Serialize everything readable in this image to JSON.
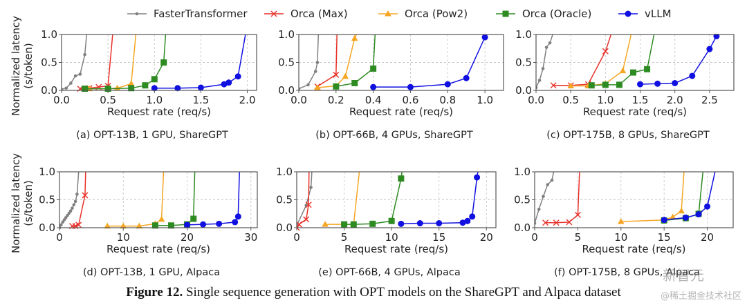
{
  "legend": [
    {
      "name": "FasterTransformer",
      "color": "#808080",
      "marker": "dot"
    },
    {
      "name": "Orca (Max)",
      "color": "#e8312a",
      "marker": "x"
    },
    {
      "name": "Orca (Pow2)",
      "color": "#f5a623",
      "marker": "triangle"
    },
    {
      "name": "Orca (Oracle)",
      "color": "#2e8b22",
      "marker": "square"
    },
    {
      "name": "vLLM",
      "color": "#1010e0",
      "marker": "circle"
    }
  ],
  "caption": {
    "label": "Figure 12.",
    "text": " Single sequence generation with OPT models on the ShareGPT and Alpaca dataset"
  },
  "watermarks": [
    "新智元",
    "@稀土掘金技术社区"
  ],
  "chart_data": [
    {
      "type": "line",
      "subtitle": "(a) OPT-13B, 1 GPU, ShareGPT",
      "xlabel": "Request rate (req/s)",
      "ylabel": "Normalized latency\n(s/token)",
      "xlim": [
        0,
        2.1
      ],
      "ylim": [
        0,
        1.0
      ],
      "xticks": [
        0.0,
        0.5,
        1.0,
        1.5,
        2.0
      ],
      "xtick_labels": [
        "0.0",
        "0.5",
        "1.0",
        "1.5",
        "2.0"
      ],
      "yticks": [
        0.0,
        0.5,
        1.0
      ],
      "ytick_labels": [
        "0.0",
        "0.5",
        "1.0"
      ],
      "grid": true,
      "series": [
        {
          "name": "FasterTransformer",
          "x": [
            0.0,
            0.05,
            0.1,
            0.15,
            0.2,
            0.25,
            0.27
          ],
          "y": [
            0.02,
            0.04,
            0.13,
            0.26,
            0.29,
            0.64,
            1.0
          ]
        },
        {
          "name": "Orca (Max)",
          "x": [
            0.2,
            0.25,
            0.3,
            0.4,
            0.5,
            0.55
          ],
          "y": [
            0.03,
            0.03,
            0.04,
            0.06,
            0.08,
            1.0
          ]
        },
        {
          "name": "Orca (Pow2)",
          "x": [
            0.25,
            0.3,
            0.5,
            0.6,
            0.75,
            0.8
          ],
          "y": [
            0.03,
            0.03,
            0.03,
            0.04,
            0.12,
            1.0
          ]
        },
        {
          "name": "Orca (Oracle)",
          "x": [
            0.25,
            0.5,
            0.75,
            0.9,
            1.0,
            1.1,
            1.12
          ],
          "y": [
            0.03,
            0.03,
            0.04,
            0.09,
            0.2,
            0.5,
            1.0
          ]
        },
        {
          "name": "vLLM",
          "x": [
            1.0,
            1.25,
            1.5,
            1.75,
            1.8,
            1.9,
            1.98
          ],
          "y": [
            0.04,
            0.04,
            0.05,
            0.11,
            0.14,
            0.25,
            1.0
          ]
        }
      ]
    },
    {
      "type": "line",
      "subtitle": "(b) OPT-66B, 4 GPUs, ShareGPT",
      "xlabel": "Request rate (req/s)",
      "ylabel": "",
      "xlim": [
        0,
        1.1
      ],
      "ylim": [
        0,
        1.0
      ],
      "xticks": [
        0.0,
        0.2,
        0.4,
        0.6,
        0.8,
        1.0
      ],
      "xtick_labels": [
        "0.0",
        "0.2",
        "0.4",
        "0.6",
        "0.8",
        "1.0"
      ],
      "yticks": [
        0.0,
        0.5,
        1.0
      ],
      "ytick_labels": [
        "0.0",
        "0.5",
        "1.0"
      ],
      "grid": true,
      "series": [
        {
          "name": "FasterTransformer",
          "x": [
            0.0,
            0.05,
            0.09,
            0.1,
            0.105
          ],
          "y": [
            0.03,
            0.1,
            0.34,
            0.5,
            1.0
          ]
        },
        {
          "name": "Orca (Max)",
          "x": [
            0.1,
            0.2,
            0.205
          ],
          "y": [
            0.07,
            0.28,
            1.0
          ]
        },
        {
          "name": "Orca (Pow2)",
          "x": [
            0.1,
            0.2,
            0.25,
            0.3,
            0.31
          ],
          "y": [
            0.05,
            0.08,
            0.25,
            0.93,
            1.0
          ]
        },
        {
          "name": "Orca (Oracle)",
          "x": [
            0.2,
            0.3,
            0.4,
            0.41
          ],
          "y": [
            0.07,
            0.13,
            0.39,
            1.0
          ]
        },
        {
          "name": "vLLM",
          "x": [
            0.4,
            0.6,
            0.8,
            0.9,
            1.0
          ],
          "y": [
            0.06,
            0.06,
            0.11,
            0.22,
            0.95
          ]
        }
      ]
    },
    {
      "type": "line",
      "subtitle": "(c) OPT-175B, 8 GPUs, ShareGPT",
      "xlabel": "Request rate (req/s)",
      "ylabel": "",
      "xlim": [
        0,
        2.85
      ],
      "ylim": [
        0,
        1.0
      ],
      "xticks": [
        0.0,
        0.5,
        1.0,
        1.5,
        2.0,
        2.5
      ],
      "xtick_labels": [
        "0.0",
        "0.5",
        "1.0",
        "1.5",
        "2.0",
        "2.5"
      ],
      "yticks": [
        0.0,
        0.5,
        1.0
      ],
      "ytick_labels": [
        "0.0",
        "0.5",
        "1.0"
      ],
      "grid": true,
      "series": [
        {
          "name": "FasterTransformer",
          "x": [
            0.0,
            0.05,
            0.1,
            0.15,
            0.2,
            0.24
          ],
          "y": [
            0.05,
            0.18,
            0.39,
            0.77,
            0.85,
            1.0
          ]
        },
        {
          "name": "Orca (Max)",
          "x": [
            0.25,
            0.5,
            0.75,
            1.0,
            1.08
          ],
          "y": [
            0.09,
            0.09,
            0.11,
            0.7,
            1.0
          ]
        },
        {
          "name": "Orca (Pow2)",
          "x": [
            0.5,
            0.75,
            1.0,
            1.25,
            1.37
          ],
          "y": [
            0.08,
            0.08,
            0.12,
            0.35,
            1.0
          ]
        },
        {
          "name": "Orca (Oracle)",
          "x": [
            0.8,
            1.0,
            1.2,
            1.4,
            1.6,
            1.7
          ],
          "y": [
            0.09,
            0.1,
            0.1,
            0.32,
            0.38,
            1.0
          ]
        },
        {
          "name": "vLLM",
          "x": [
            1.5,
            1.75,
            2.0,
            2.25,
            2.5,
            2.6
          ],
          "y": [
            0.11,
            0.12,
            0.13,
            0.26,
            0.74,
            0.97
          ]
        }
      ]
    },
    {
      "type": "line",
      "subtitle": "(d) OPT-13B, 1 GPU, Alpaca",
      "xlabel": "Request rate (req/s)",
      "ylabel": "Normalized latency\n(s/token)",
      "xlim": [
        0,
        31
      ],
      "ylim": [
        0,
        1.0
      ],
      "xticks": [
        0,
        10,
        20,
        30
      ],
      "xtick_labels": [
        "0",
        "10",
        "20",
        "30"
      ],
      "yticks": [
        0.0,
        0.5,
        1.0
      ],
      "ytick_labels": [
        "0.0",
        "0.5",
        "1.0"
      ],
      "grid": true,
      "series": [
        {
          "name": "FasterTransformer",
          "x": [
            0.0,
            0.25,
            0.5,
            0.75,
            1.0,
            1.25,
            1.5,
            1.75,
            2.0,
            2.25,
            2.5,
            2.75,
            3.0
          ],
          "y": [
            0.0,
            0.05,
            0.1,
            0.14,
            0.18,
            0.22,
            0.26,
            0.3,
            0.35,
            0.41,
            0.47,
            0.6,
            1.0
          ]
        },
        {
          "name": "Orca (Max)",
          "x": [
            2.0,
            2.5,
            3.0,
            4.0,
            4.1
          ],
          "y": [
            0.03,
            0.03,
            0.05,
            0.58,
            1.0
          ]
        },
        {
          "name": "Orca (Pow2)",
          "x": [
            7.5,
            10,
            12.5,
            15,
            16,
            16.3
          ],
          "y": [
            0.03,
            0.03,
            0.03,
            0.07,
            0.15,
            1.0
          ]
        },
        {
          "name": "Orca (Oracle)",
          "x": [
            15,
            17.5,
            20,
            21,
            21.2
          ],
          "y": [
            0.04,
            0.04,
            0.06,
            0.16,
            1.0
          ]
        },
        {
          "name": "vLLM",
          "x": [
            20,
            22.5,
            25,
            27.5,
            28,
            28.2
          ],
          "y": [
            0.05,
            0.06,
            0.07,
            0.1,
            0.2,
            1.0
          ]
        }
      ]
    },
    {
      "type": "line",
      "subtitle": "(e) OPT-66B, 4 GPUs, Alpaca",
      "xlabel": "Request rate (req/s)",
      "ylabel": "",
      "xlim": [
        0,
        21
      ],
      "ylim": [
        0,
        1.0
      ],
      "xticks": [
        0,
        5,
        10,
        15,
        20
      ],
      "xtick_labels": [
        "0",
        "5",
        "10",
        "15",
        "20"
      ],
      "yticks": [
        0.0,
        0.5,
        1.0
      ],
      "ytick_labels": [
        "0.0",
        "0.5",
        "1.0"
      ],
      "grid": true,
      "series": [
        {
          "name": "FasterTransformer",
          "x": [
            0.0,
            1.0,
            1.5,
            1.6
          ],
          "y": [
            0.04,
            0.4,
            0.72,
            1.0
          ]
        },
        {
          "name": "Orca (Max)",
          "x": [
            0.0,
            0.25,
            1.0,
            1.25,
            1.3
          ],
          "y": [
            0.0,
            0.06,
            0.15,
            0.41,
            1.0
          ]
        },
        {
          "name": "Orca (Pow2)",
          "x": [
            3.0,
            5.0,
            6.0,
            6.6
          ],
          "y": [
            0.06,
            0.06,
            0.06,
            1.0
          ]
        },
        {
          "name": "Orca (Oracle)",
          "x": [
            5.0,
            6.0,
            8.0,
            10.0,
            11.0,
            11.1
          ],
          "y": [
            0.06,
            0.06,
            0.07,
            0.12,
            0.88,
            1.0
          ]
        },
        {
          "name": "vLLM",
          "x": [
            11,
            13,
            15,
            17.5,
            18,
            18.5,
            19,
            19.1
          ],
          "y": [
            0.07,
            0.08,
            0.08,
            0.09,
            0.12,
            0.2,
            0.9,
            1.0
          ]
        }
      ]
    },
    {
      "type": "line",
      "subtitle": "(f) OPT-175B, 8 GPUs, Alpaca",
      "xlabel": "Request rate (req/s)",
      "ylabel": "",
      "xlim": [
        0,
        23
      ],
      "ylim": [
        0,
        1.0
      ],
      "xticks": [
        0,
        5,
        10,
        15,
        20
      ],
      "xtick_labels": [
        "0",
        "5",
        "10",
        "15",
        "20"
      ],
      "yticks": [
        0.0,
        0.5,
        1.0
      ],
      "ytick_labels": [
        "0.0",
        "0.5",
        "1.0"
      ],
      "grid": true,
      "series": [
        {
          "name": "FasterTransformer",
          "x": [
            0.0,
            0.5,
            1.0,
            1.5,
            2.0,
            2.2
          ],
          "y": [
            0.08,
            0.33,
            0.56,
            0.77,
            0.85,
            1.0
          ]
        },
        {
          "name": "Orca (Max)",
          "x": [
            1.25,
            2.5,
            4.0,
            5.0,
            5.2
          ],
          "y": [
            0.09,
            0.09,
            0.1,
            0.23,
            1.0
          ]
        },
        {
          "name": "Orca (Pow2)",
          "x": [
            10,
            15,
            16,
            17,
            17.3
          ],
          "y": [
            0.11,
            0.14,
            0.19,
            0.3,
            1.0
          ]
        },
        {
          "name": "Orca (Oracle)",
          "x": [
            15,
            17.5,
            19,
            19.5
          ],
          "y": [
            0.13,
            0.17,
            0.25,
            1.0
          ]
        },
        {
          "name": "vLLM",
          "x": [
            15,
            17.5,
            19,
            20,
            20.9
          ],
          "y": [
            0.14,
            0.18,
            0.24,
            0.38,
            1.0
          ]
        }
      ]
    }
  ]
}
